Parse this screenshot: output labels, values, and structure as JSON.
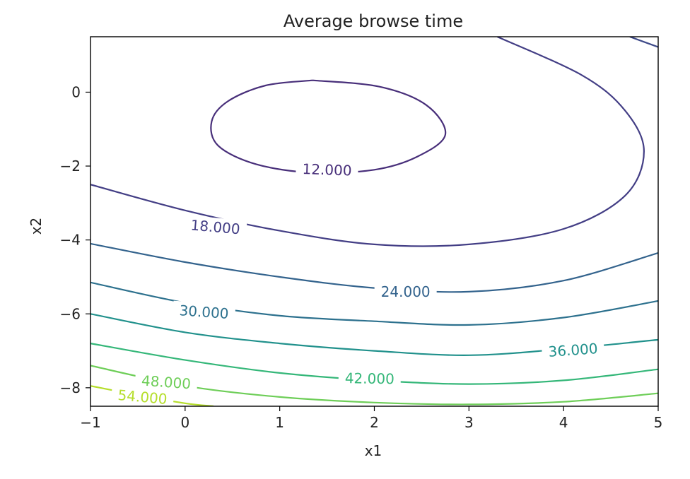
{
  "chart_data": {
    "type": "contour",
    "title": "Average browse time",
    "xlabel": "x1",
    "ylabel": "x2",
    "xlim": [
      -1,
      5
    ],
    "ylim": [
      -8.5,
      1.5
    ],
    "xticks": [
      -1,
      0,
      1,
      2,
      3,
      4,
      5
    ],
    "yticks": [
      0,
      -2,
      -4,
      -6,
      -8
    ],
    "xtick_labels": [
      "−1",
      "0",
      "1",
      "2",
      "3",
      "4",
      "5"
    ],
    "ytick_labels": [
      "0",
      "−2",
      "−4",
      "−6",
      "−8"
    ],
    "grid": false,
    "levels": [
      {
        "label": "12.000",
        "color": "#482f7a",
        "points": [
          [
            1.35,
            0.32
          ],
          [
            2.05,
            0.15
          ],
          [
            2.55,
            -0.35
          ],
          [
            2.75,
            -1.15
          ],
          [
            2.45,
            -1.75
          ],
          [
            2.0,
            -2.1
          ],
          [
            1.35,
            -2.18
          ],
          [
            0.75,
            -1.95
          ],
          [
            0.35,
            -1.45
          ],
          [
            0.28,
            -0.8
          ],
          [
            0.45,
            -0.25
          ],
          [
            0.85,
            0.18
          ],
          [
            1.35,
            0.32
          ]
        ],
        "label_at": [
          1.5,
          -2.1
        ],
        "label_angle": 2
      },
      {
        "label": "18.000",
        "color": "#433e85",
        "points": [
          [
            -1.0,
            -2.5
          ],
          [
            0.0,
            -3.2
          ],
          [
            1.0,
            -3.75
          ],
          [
            2.0,
            -4.12
          ],
          [
            3.0,
            -4.12
          ],
          [
            4.0,
            -3.7
          ],
          [
            4.65,
            -2.8
          ],
          [
            4.85,
            -1.6
          ],
          [
            4.65,
            -0.5
          ],
          [
            4.2,
            0.45
          ],
          [
            3.3,
            1.5
          ]
        ],
        "label_at": [
          0.32,
          -3.65
        ],
        "label_angle": 5
      },
      {
        "label": "",
        "color": "#3e4a89",
        "points": [
          [
            4.7,
            1.5
          ],
          [
            5.0,
            1.22
          ]
        ],
        "label_at": null,
        "label_angle": 0
      },
      {
        "label": "24.000",
        "color": "#33638d",
        "points": [
          [
            -1.0,
            -4.1
          ],
          [
            0.0,
            -4.6
          ],
          [
            1.0,
            -5.0
          ],
          [
            2.0,
            -5.3
          ],
          [
            3.0,
            -5.4
          ],
          [
            4.0,
            -5.1
          ],
          [
            5.0,
            -4.35
          ]
        ],
        "label_at": [
          2.33,
          -5.4
        ],
        "label_angle": 0
      },
      {
        "label": "30.000",
        "color": "#2d718e",
        "points": [
          [
            -1.0,
            -5.15
          ],
          [
            0.0,
            -5.7
          ],
          [
            1.0,
            -6.05
          ],
          [
            2.0,
            -6.2
          ],
          [
            3.0,
            -6.3
          ],
          [
            4.0,
            -6.1
          ],
          [
            5.0,
            -5.65
          ]
        ],
        "label_at": [
          0.2,
          -5.95
        ],
        "label_angle": 4
      },
      {
        "label": "36.000",
        "color": "#21918c",
        "points": [
          [
            -1.0,
            -6.0
          ],
          [
            0.0,
            -6.5
          ],
          [
            1.0,
            -6.8
          ],
          [
            2.0,
            -7.0
          ],
          [
            3.0,
            -7.12
          ],
          [
            4.0,
            -6.95
          ],
          [
            5.0,
            -6.7
          ]
        ],
        "label_at": [
          4.1,
          -6.98
        ],
        "label_angle": -4
      },
      {
        "label": "42.000",
        "color": "#35b779",
        "points": [
          [
            -1.0,
            -6.8
          ],
          [
            0.0,
            -7.25
          ],
          [
            1.0,
            -7.6
          ],
          [
            2.0,
            -7.8
          ],
          [
            3.0,
            -7.9
          ],
          [
            4.0,
            -7.8
          ],
          [
            5.0,
            -7.5
          ]
        ],
        "label_at": [
          1.95,
          -7.75
        ],
        "label_angle": 1
      },
      {
        "label": "48.000",
        "color": "#6ece58",
        "points": [
          [
            -1.0,
            -7.4
          ],
          [
            0.0,
            -7.95
          ],
          [
            1.0,
            -8.25
          ],
          [
            2.0,
            -8.4
          ],
          [
            3.0,
            -8.45
          ],
          [
            4.0,
            -8.38
          ],
          [
            5.0,
            -8.15
          ]
        ],
        "label_at": [
          -0.2,
          -7.85
        ],
        "label_angle": 4
      },
      {
        "label": "54.000",
        "color": "#b5de2b",
        "points": [
          [
            -1.0,
            -7.95
          ],
          [
            -0.5,
            -8.2
          ],
          [
            0.0,
            -8.42
          ],
          [
            0.3,
            -8.5
          ]
        ],
        "label_at": [
          -0.45,
          -8.25
        ],
        "label_angle": 5
      }
    ]
  }
}
